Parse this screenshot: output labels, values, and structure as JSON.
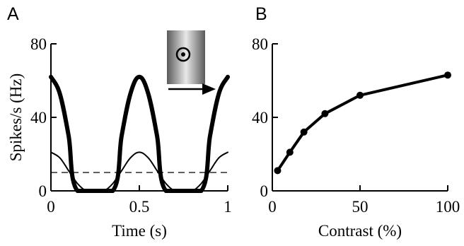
{
  "panels": {
    "a": {
      "label": "A"
    },
    "b": {
      "label": "B"
    }
  },
  "chart_data": [
    {
      "type": "line",
      "panel": "A",
      "xlabel": "Time (s)",
      "ylabel": "Spikes/s (Hz)",
      "xlim": [
        0,
        1
      ],
      "ylim": [
        0,
        80
      ],
      "xticks": [
        "0",
        "0.5",
        "1"
      ],
      "yticks": [
        "0",
        "40",
        "80"
      ],
      "grid": false,
      "threshold": 10,
      "series": [
        {
          "style": "thick",
          "x": [
            0,
            0.05,
            0.1,
            0.15,
            0.35,
            0.4,
            0.45,
            0.5,
            0.55,
            0.6,
            0.65,
            0.85,
            0.9,
            0.95,
            1.0
          ],
          "y": [
            62,
            53,
            30,
            0,
            0,
            30,
            53,
            62,
            53,
            30,
            0,
            0,
            30,
            53,
            62
          ]
        },
        {
          "style": "thin",
          "x": [
            0,
            0.05,
            0.1,
            0.15,
            0.2,
            0.25,
            0.3,
            0.35,
            0.4,
            0.45,
            0.5,
            0.55,
            0.6,
            0.65,
            0.7,
            0.75,
            0.8,
            0.85,
            0.9,
            0.95,
            1.0
          ],
          "y": [
            21,
            18,
            11,
            4,
            0,
            0,
            0,
            4,
            11,
            18,
            21,
            18,
            11,
            4,
            0,
            0,
            0,
            4,
            11,
            18,
            21
          ]
        }
      ],
      "inset": {
        "icon": "drifting-grating-with-receptive-field-icon",
        "arrow": "rightward-motion-arrow-icon"
      }
    },
    {
      "type": "line",
      "panel": "B",
      "xlabel": "Contrast (%)",
      "ylabel": "",
      "xlim": [
        0,
        100
      ],
      "ylim": [
        0,
        80
      ],
      "xticks": [
        "0",
        "50",
        "100"
      ],
      "yticks": [
        "0",
        "40",
        "80"
      ],
      "grid": false,
      "series": [
        {
          "style": "markers",
          "x": [
            3,
            10,
            18,
            30,
            50,
            100
          ],
          "y": [
            11,
            21,
            32,
            42,
            52,
            63
          ]
        }
      ]
    }
  ]
}
